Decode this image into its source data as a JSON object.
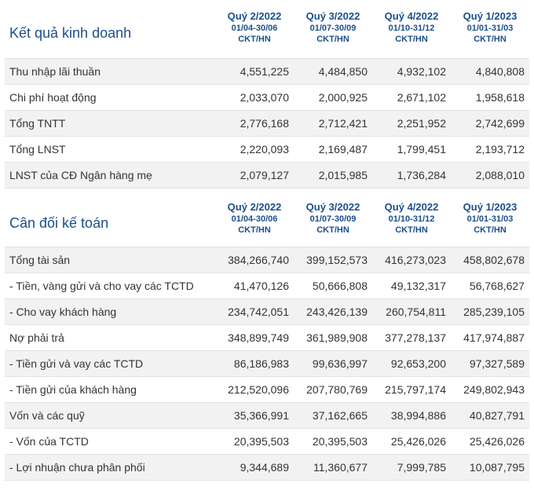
{
  "sections": [
    {
      "title": "Kết quả kinh doanh",
      "headers": [
        {
          "quarter": "Quý 2/2022",
          "range": "01/04-30/06",
          "unit": "CKT/HN"
        },
        {
          "quarter": "Quý 3/2022",
          "range": "01/07-30/09",
          "unit": "CKT/HN"
        },
        {
          "quarter": "Quý 4/2022",
          "range": "01/10-31/12",
          "unit": "CKT/HN"
        },
        {
          "quarter": "Quý 1/2023",
          "range": "01/01-31/03",
          "unit": "CKT/HN"
        }
      ],
      "rows": [
        {
          "label": "Thu nhập lãi thuần",
          "values": [
            "4,551,225",
            "4,484,850",
            "4,932,102",
            "4,840,808"
          ]
        },
        {
          "label": "Chi phí hoạt động",
          "values": [
            "2,033,070",
            "2,000,925",
            "2,671,102",
            "1,958,618"
          ]
        },
        {
          "label": "Tổng TNTT",
          "values": [
            "2,776,168",
            "2,712,421",
            "2,251,952",
            "2,742,699"
          ]
        },
        {
          "label": "Tổng LNST",
          "values": [
            "2,220,093",
            "2,169,487",
            "1,799,451",
            "2,193,712"
          ]
        },
        {
          "label": "LNST của CĐ Ngân hàng mẹ",
          "values": [
            "2,079,127",
            "2,015,985",
            "1,736,284",
            "2,088,010"
          ]
        }
      ]
    },
    {
      "title": "Cân đối kế toán",
      "headers": [
        {
          "quarter": "Quý 2/2022",
          "range": "01/04-30/06",
          "unit": "CKT/HN"
        },
        {
          "quarter": "Quý 3/2022",
          "range": "01/07-30/09",
          "unit": "CKT/HN"
        },
        {
          "quarter": "Quý 4/2022",
          "range": "01/10-31/12",
          "unit": "CKT/HN"
        },
        {
          "quarter": "Quý 1/2023",
          "range": "01/01-31/03",
          "unit": "CKT/HN"
        }
      ],
      "rows": [
        {
          "label": "Tổng tài sản",
          "values": [
            "384,266,740",
            "399,152,573",
            "416,273,023",
            "458,802,678"
          ]
        },
        {
          "label": "- Tiền, vàng gửi và cho vay các TCTD",
          "values": [
            "41,470,126",
            "50,666,808",
            "49,132,317",
            "56,768,627"
          ]
        },
        {
          "label": "- Cho vay khách hàng",
          "values": [
            "234,742,051",
            "243,426,139",
            "260,754,811",
            "285,239,105"
          ]
        },
        {
          "label": "Nợ phải trả",
          "values": [
            "348,899,749",
            "361,989,908",
            "377,278,137",
            "417,974,887"
          ]
        },
        {
          "label": "- Tiền gửi và vay các TCTD",
          "values": [
            "86,186,983",
            "99,636,997",
            "92,653,200",
            "97,327,589"
          ]
        },
        {
          "label": "- Tiền gửi của khách hàng",
          "values": [
            "212,520,096",
            "207,780,769",
            "215,797,174",
            "249,802,943"
          ]
        },
        {
          "label": "Vốn và các quỹ",
          "values": [
            "35,366,991",
            "37,162,665",
            "38,994,886",
            "40,827,791"
          ]
        },
        {
          "label": "- Vốn của TCTD",
          "values": [
            "20,395,503",
            "20,395,503",
            "25,426,026",
            "25,426,026"
          ]
        },
        {
          "label": "- Lợi nhuận chưa phân phối",
          "values": [
            "9,344,689",
            "11,360,677",
            "7,999,785",
            "10,087,795"
          ]
        }
      ]
    }
  ]
}
